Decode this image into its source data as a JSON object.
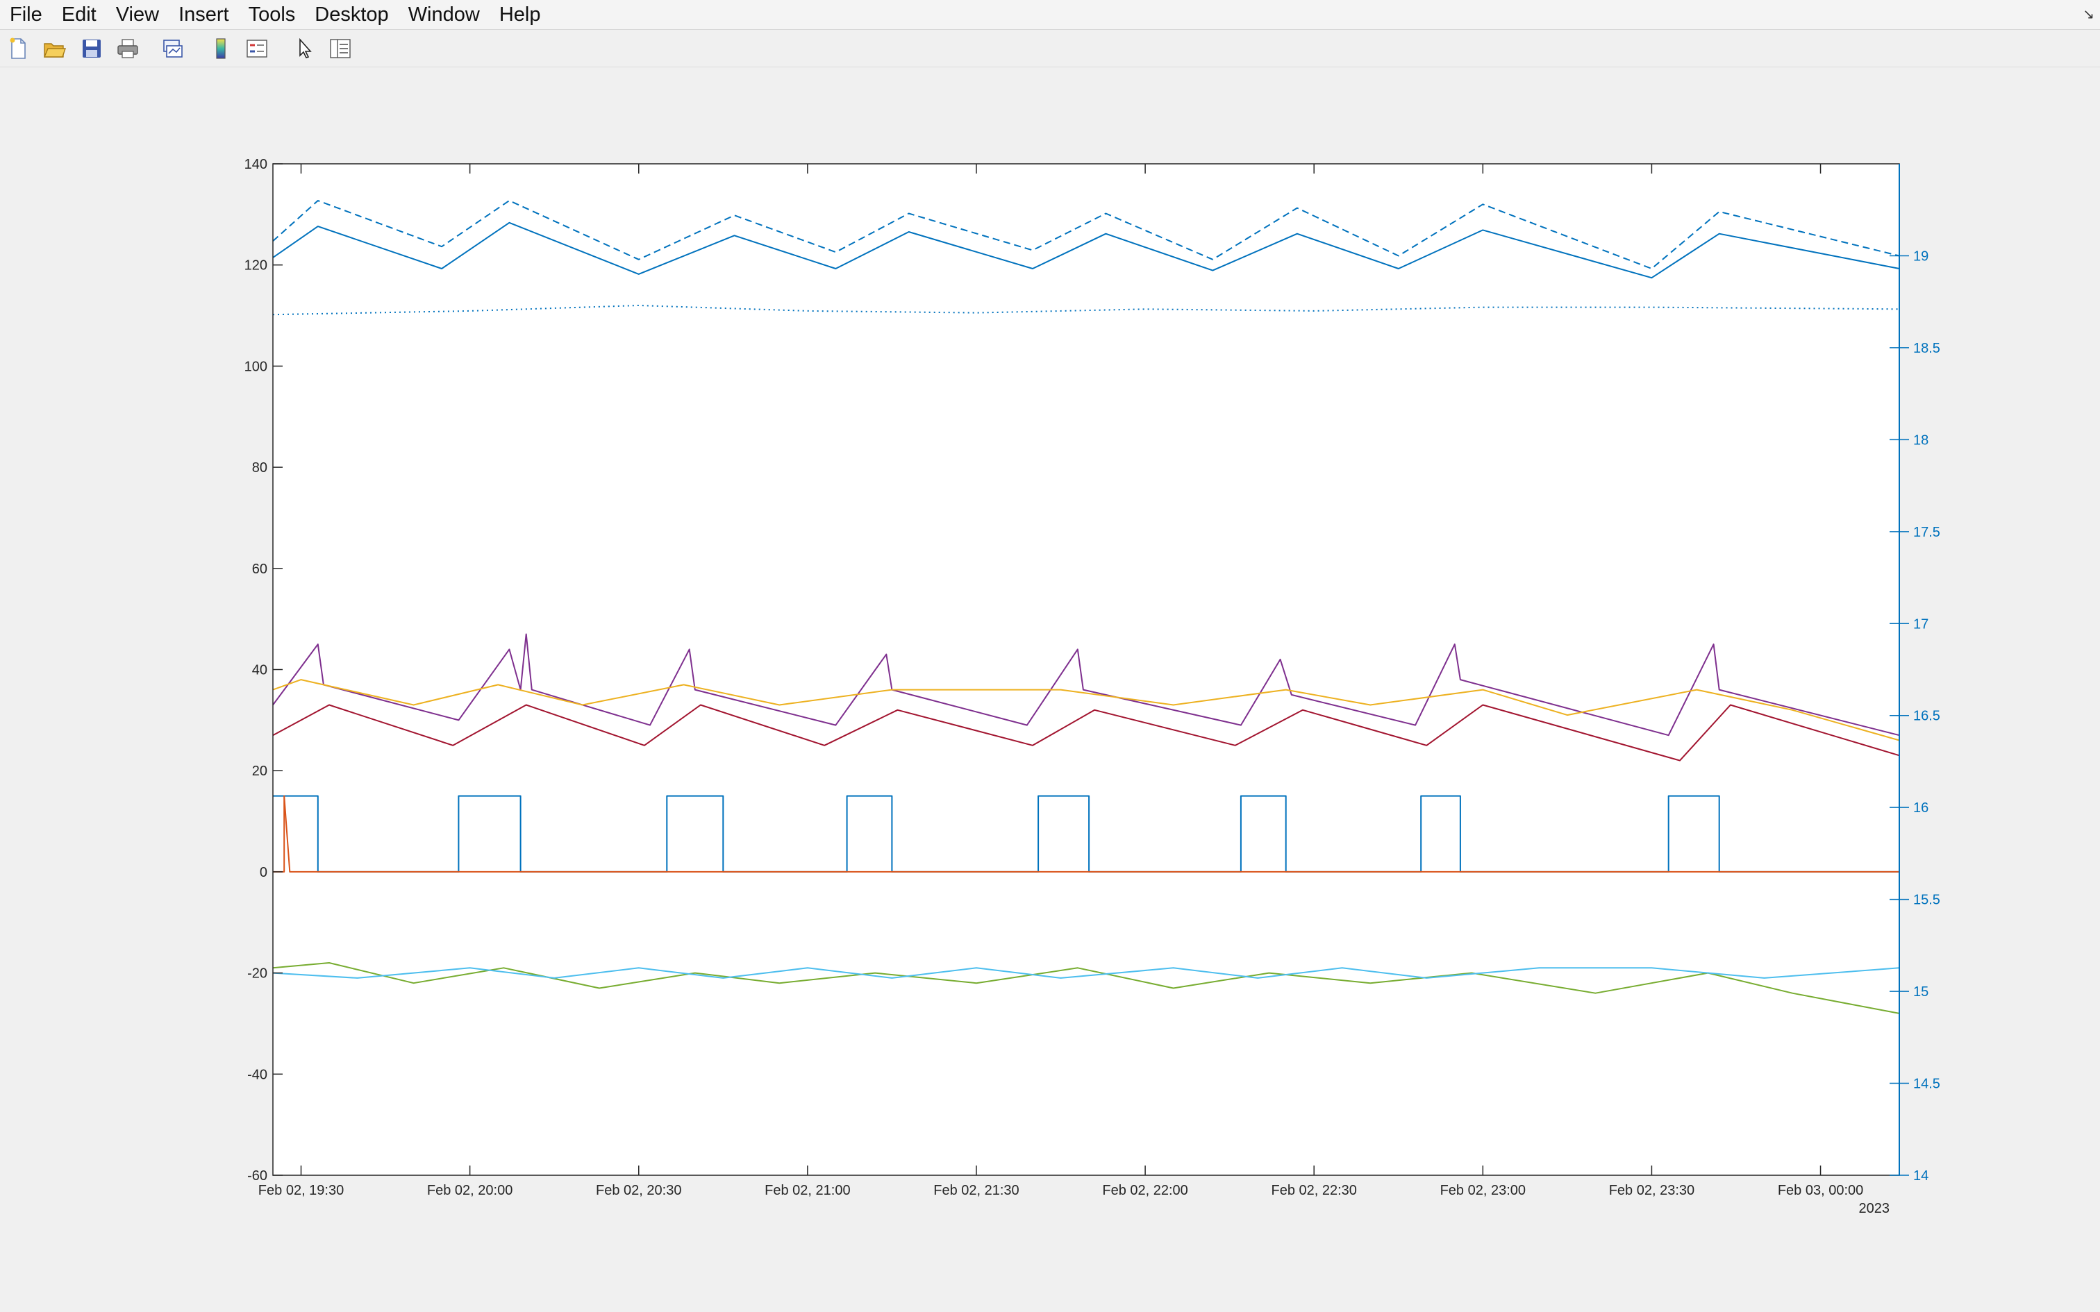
{
  "menubar": {
    "items": [
      "File",
      "Edit",
      "View",
      "Insert",
      "Tools",
      "Desktop",
      "Window",
      "Help"
    ]
  },
  "toolbar": {
    "buttons": [
      {
        "name": "new-figure-icon"
      },
      {
        "name": "open-file-icon"
      },
      {
        "name": "save-icon"
      },
      {
        "name": "print-icon"
      },
      {
        "name": "link-plot-icon"
      },
      {
        "name": "insert-colorbar-icon"
      },
      {
        "name": "insert-legend-icon"
      },
      {
        "name": "edit-plot-arrow-icon"
      },
      {
        "name": "property-inspector-icon"
      }
    ]
  },
  "colors": {
    "left_axis": "#262626",
    "right_axis": "#0072bd",
    "blue_lines": "#0072bd",
    "orange": "#d95319",
    "yellow": "#edb120",
    "purple": "#7e2f8e",
    "green": "#77ac30",
    "light_blue": "#4dbeee",
    "dark_red": "#a2142f"
  },
  "chart_data": {
    "type": "line",
    "x_range": [
      "2023-02-02 19:25",
      "2023-02-03 00:14"
    ],
    "x_ticks": [
      "Feb 02, 19:30",
      "Feb 02, 20:00",
      "Feb 02, 20:30",
      "Feb 02, 21:00",
      "Feb 02, 21:30",
      "Feb 02, 22:00",
      "Feb 02, 22:30",
      "Feb 02, 23:00",
      "Feb 02, 23:30",
      "Feb 03, 00:00"
    ],
    "x_secondary_label": "2023",
    "y_left": {
      "range": [
        -60,
        140
      ],
      "ticks": [
        "-60",
        "-40",
        "-20",
        "0",
        "20",
        "40",
        "60",
        "80",
        "100",
        "120",
        "140"
      ]
    },
    "y_right": {
      "range": [
        14,
        19.5
      ],
      "ticks": [
        "14",
        "14.5",
        "15",
        "15.5",
        "16",
        "16.5",
        "17",
        "17.5",
        "18",
        "18.5",
        "19"
      ]
    },
    "grid": false,
    "legend": "none",
    "series": [
      {
        "axis": "right",
        "color": "#0072bd",
        "style": "dashed",
        "x": [
          "2023-02-02 19:25",
          "2023-02-02 19:33",
          "2023-02-02 19:55",
          "2023-02-02 20:07",
          "2023-02-02 20:30",
          "2023-02-02 20:47",
          "2023-02-02 21:05",
          "2023-02-02 21:18",
          "2023-02-02 21:40",
          "2023-02-02 21:53",
          "2023-02-02 22:12",
          "2023-02-02 22:27",
          "2023-02-02 22:45",
          "2023-02-02 23:00",
          "2023-02-02 23:30",
          "2023-02-02 23:42",
          "2023-02-03 00:14"
        ],
        "y": [
          19.08,
          19.3,
          19.05,
          19.3,
          18.98,
          19.22,
          19.02,
          19.23,
          19.03,
          19.23,
          18.98,
          19.26,
          19.0,
          19.28,
          18.93,
          19.24,
          19.0
        ]
      },
      {
        "axis": "right",
        "color": "#0072bd",
        "style": "solid",
        "x": [
          "2023-02-02 19:25",
          "2023-02-02 19:33",
          "2023-02-02 19:55",
          "2023-02-02 20:07",
          "2023-02-02 20:30",
          "2023-02-02 20:47",
          "2023-02-02 21:05",
          "2023-02-02 21:18",
          "2023-02-02 21:40",
          "2023-02-02 21:53",
          "2023-02-02 22:12",
          "2023-02-02 22:27",
          "2023-02-02 22:45",
          "2023-02-02 23:00",
          "2023-02-02 23:30",
          "2023-02-02 23:42",
          "2023-02-03 00:14"
        ],
        "y": [
          18.99,
          19.16,
          18.93,
          19.18,
          18.9,
          19.11,
          18.93,
          19.13,
          18.93,
          19.12,
          18.92,
          19.12,
          18.93,
          19.14,
          18.88,
          19.12,
          18.93
        ]
      },
      {
        "axis": "right",
        "color": "#0072bd",
        "style": "dotted",
        "x": [
          "2023-02-02 19:25",
          "2023-02-02 20:00",
          "2023-02-02 20:30",
          "2023-02-02 21:00",
          "2023-02-02 21:30",
          "2023-02-02 22:00",
          "2023-02-02 22:30",
          "2023-02-02 23:00",
          "2023-02-02 23:30",
          "2023-02-03 00:14"
        ],
        "y": [
          18.68,
          18.7,
          18.73,
          18.7,
          18.69,
          18.71,
          18.7,
          18.72,
          18.72,
          18.71
        ]
      },
      {
        "axis": "left",
        "color": "#7e2f8e",
        "style": "solid",
        "x": [
          "2023-02-02 19:25",
          "2023-02-02 19:33",
          "2023-02-02 19:34",
          "2023-02-02 19:58",
          "2023-02-02 20:07",
          "2023-02-02 20:09",
          "2023-02-02 20:10",
          "2023-02-02 20:11",
          "2023-02-02 20:32",
          "2023-02-02 20:39",
          "2023-02-02 20:40",
          "2023-02-02 21:05",
          "2023-02-02 21:14",
          "2023-02-02 21:15",
          "2023-02-02 21:39",
          "2023-02-02 21:48",
          "2023-02-02 21:49",
          "2023-02-02 22:17",
          "2023-02-02 22:24",
          "2023-02-02 22:26",
          "2023-02-02 22:48",
          "2023-02-02 22:55",
          "2023-02-02 22:56",
          "2023-02-02 23:33",
          "2023-02-02 23:41",
          "2023-02-02 23:42",
          "2023-02-03 00:14"
        ],
        "y": [
          33,
          45,
          37,
          30,
          44,
          36,
          47,
          36,
          29,
          44,
          36,
          29,
          43,
          36,
          29,
          44,
          36,
          29,
          42,
          35,
          29,
          45,
          38,
          27,
          45,
          36,
          27
        ]
      },
      {
        "axis": "left",
        "color": "#edb120",
        "style": "solid",
        "x": [
          "2023-02-02 19:25",
          "2023-02-02 19:30",
          "2023-02-02 19:50",
          "2023-02-02 20:05",
          "2023-02-02 20:20",
          "2023-02-02 20:38",
          "2023-02-02 20:55",
          "2023-02-02 21:15",
          "2023-02-02 21:45",
          "2023-02-02 22:05",
          "2023-02-02 22:25",
          "2023-02-02 22:40",
          "2023-02-02 23:00",
          "2023-02-02 23:15",
          "2023-02-02 23:38",
          "2023-02-02 23:55",
          "2023-02-03 00:14"
        ],
        "y": [
          36,
          38,
          33,
          37,
          33,
          37,
          33,
          36,
          36,
          33,
          36,
          33,
          36,
          31,
          36,
          32,
          26
        ]
      },
      {
        "axis": "left",
        "color": "#a2142f",
        "style": "solid",
        "x": [
          "2023-02-02 19:25",
          "2023-02-02 19:35",
          "2023-02-02 19:57",
          "2023-02-02 20:10",
          "2023-02-02 20:31",
          "2023-02-02 20:41",
          "2023-02-02 21:03",
          "2023-02-02 21:16",
          "2023-02-02 21:40",
          "2023-02-02 21:51",
          "2023-02-02 22:16",
          "2023-02-02 22:28",
          "2023-02-02 22:50",
          "2023-02-02 23:00",
          "2023-02-02 23:35",
          "2023-02-02 23:44",
          "2023-02-03 00:14"
        ],
        "y": [
          27,
          33,
          25,
          33,
          25,
          33,
          25,
          32,
          25,
          32,
          25,
          32,
          25,
          33,
          22,
          33,
          23
        ]
      },
      {
        "axis": "left",
        "color": "#0072bd",
        "style": "step",
        "x": [
          "2023-02-02 19:25",
          "2023-02-02 19:33",
          "2023-02-02 19:58",
          "2023-02-02 20:09",
          "2023-02-02 20:35",
          "2023-02-02 20:45",
          "2023-02-02 21:07",
          "2023-02-02 21:15",
          "2023-02-02 21:41",
          "2023-02-02 21:50",
          "2023-02-02 22:17",
          "2023-02-02 22:25",
          "2023-02-02 22:49",
          "2023-02-02 22:56",
          "2023-02-02 23:33",
          "2023-02-02 23:42",
          "2023-02-03 00:14"
        ],
        "y": [
          15,
          0,
          15,
          0,
          15,
          0,
          15,
          0,
          15,
          0,
          15,
          0,
          15,
          0,
          15,
          0,
          0
        ]
      },
      {
        "axis": "left",
        "color": "#d95319",
        "style": "solid",
        "x": [
          "2023-02-02 19:25",
          "2023-02-02 19:27",
          "2023-02-02 19:27",
          "2023-02-02 19:28",
          "2023-02-03 00:14"
        ],
        "y": [
          0,
          0,
          15,
          0,
          0
        ]
      },
      {
        "axis": "left",
        "color": "#77ac30",
        "style": "solid",
        "x": [
          "2023-02-02 19:25",
          "2023-02-02 19:35",
          "2023-02-02 19:50",
          "2023-02-02 20:06",
          "2023-02-02 20:23",
          "2023-02-02 20:40",
          "2023-02-02 20:55",
          "2023-02-02 21:12",
          "2023-02-02 21:30",
          "2023-02-02 21:48",
          "2023-02-02 22:05",
          "2023-02-02 22:22",
          "2023-02-02 22:40",
          "2023-02-02 22:58",
          "2023-02-02 23:20",
          "2023-02-02 23:40",
          "2023-02-02 23:55",
          "2023-02-03 00:14"
        ],
        "y": [
          -19,
          -18,
          -22,
          -19,
          -23,
          -20,
          -22,
          -20,
          -22,
          -19,
          -23,
          -20,
          -22,
          -20,
          -24,
          -20,
          -24,
          -28
        ]
      },
      {
        "axis": "left",
        "color": "#4dbeee",
        "style": "solid",
        "x": [
          "2023-02-02 19:25",
          "2023-02-02 19:40",
          "2023-02-02 20:00",
          "2023-02-02 20:15",
          "2023-02-02 20:30",
          "2023-02-02 20:45",
          "2023-02-02 21:00",
          "2023-02-02 21:15",
          "2023-02-02 21:30",
          "2023-02-02 21:45",
          "2023-02-02 22:05",
          "2023-02-02 22:20",
          "2023-02-02 22:35",
          "2023-02-02 22:50",
          "2023-02-02 23:10",
          "2023-02-02 23:30",
          "2023-02-02 23:50",
          "2023-02-03 00:14"
        ],
        "y": [
          -20,
          -21,
          -19,
          -21,
          -19,
          -21,
          -19,
          -21,
          -19,
          -21,
          -19,
          -21,
          -19,
          -21,
          -19,
          -19,
          -21,
          -19
        ]
      }
    ]
  }
}
